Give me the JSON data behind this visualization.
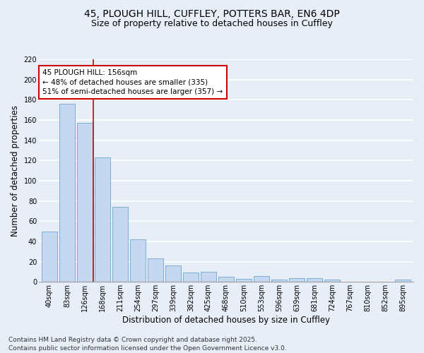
{
  "title_line1": "45, PLOUGH HILL, CUFFLEY, POTTERS BAR, EN6 4DP",
  "title_line2": "Size of property relative to detached houses in Cuffley",
  "xlabel": "Distribution of detached houses by size in Cuffley",
  "ylabel": "Number of detached properties",
  "categories": [
    "40sqm",
    "83sqm",
    "126sqm",
    "168sqm",
    "211sqm",
    "254sqm",
    "297sqm",
    "339sqm",
    "382sqm",
    "425sqm",
    "468sqm",
    "510sqm",
    "553sqm",
    "596sqm",
    "639sqm",
    "681sqm",
    "724sqm",
    "767sqm",
    "810sqm",
    "852sqm",
    "895sqm"
  ],
  "values": [
    50,
    176,
    157,
    123,
    74,
    42,
    23,
    16,
    9,
    10,
    5,
    3,
    6,
    2,
    4,
    4,
    2,
    0,
    0,
    0,
    2
  ],
  "bar_color": "#c5d8f0",
  "bar_edge_color": "#7aaed4",
  "annotation_label": "45 PLOUGH HILL: 156sqm",
  "annotation_line1": "← 48% of detached houses are smaller (335)",
  "annotation_line2": "51% of semi-detached houses are larger (357) →",
  "vline_position": 2.5,
  "ylim": [
    0,
    220
  ],
  "yticks": [
    0,
    20,
    40,
    60,
    80,
    100,
    120,
    140,
    160,
    180,
    200,
    220
  ],
  "background_color": "#e8eef8",
  "grid_color": "#ffffff",
  "vline_color": "#cc0000",
  "annotation_box_color": "#cc0000",
  "footer_line1": "Contains HM Land Registry data © Crown copyright and database right 2025.",
  "footer_line2": "Contains public sector information licensed under the Open Government Licence v3.0.",
  "title_fontsize": 10,
  "subtitle_fontsize": 9,
  "axis_label_fontsize": 8.5,
  "tick_fontsize": 7,
  "annotation_fontsize": 7.5,
  "footer_fontsize": 6.5
}
